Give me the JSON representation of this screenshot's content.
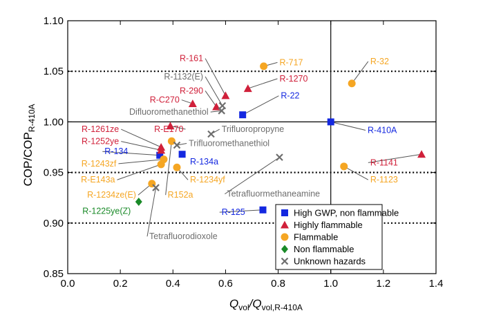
{
  "chart_data": {
    "type": "scatter",
    "xlabel": {
      "main": "Q",
      "sub1": "vol",
      "mid": "/Q",
      "sub2": "vol,R-410A"
    },
    "ylabel": {
      "main": "COP/COP",
      "sub": "R-410A"
    },
    "xlim": [
      0.0,
      1.4
    ],
    "ylim": [
      0.85,
      1.1
    ],
    "xticks": [
      0.0,
      0.2,
      0.4,
      0.6,
      0.8,
      1.0,
      1.2,
      1.4
    ],
    "yticks": [
      0.85,
      0.9,
      0.95,
      1.0,
      1.05,
      1.1
    ],
    "xtick_labels": [
      "0.0",
      "0.2",
      "0.4",
      "0.6",
      "0.8",
      "1.0",
      "1.2",
      "1.4"
    ],
    "ytick_labels": [
      "0.85",
      "0.90",
      "0.95",
      "1.00",
      "1.05",
      "1.10"
    ],
    "reference_lines": {
      "y_dotted": [
        0.9,
        0.95,
        1.05
      ],
      "y_solid": [
        1.0
      ],
      "x_solid": [
        1.0
      ]
    },
    "legend_position": "bottom-right",
    "categories": [
      {
        "key": "hgwp",
        "name": "High GWP, non flammable",
        "marker": "square",
        "color": "#1428e0"
      },
      {
        "key": "high",
        "name": "Highly flammable",
        "marker": "triangle",
        "color": "#d0203a"
      },
      {
        "key": "flam",
        "name": "Flammable",
        "marker": "circle",
        "color": "#f5a623"
      },
      {
        "key": "non",
        "name": "Non flammable",
        "marker": "diamond",
        "color": "#1a8a28"
      },
      {
        "key": "unk",
        "name": "Unknown hazards",
        "marker": "x",
        "color": "#6e6e6e"
      }
    ],
    "points": [
      {
        "label": "R-410A",
        "cat": "hgwp",
        "x": 1.0,
        "y": 1.0,
        "lx": 1.14,
        "ly": 0.989,
        "anchor": "start",
        "line": true
      },
      {
        "label": "R-22",
        "cat": "hgwp",
        "x": 0.665,
        "y": 1.007,
        "lx": 0.81,
        "ly": 1.023,
        "anchor": "start",
        "line": true
      },
      {
        "label": "R-134a",
        "cat": "hgwp",
        "x": 0.435,
        "y": 0.968,
        "lx": 0.465,
        "ly": 0.958,
        "anchor": "start",
        "line": false
      },
      {
        "label": "R-134",
        "cat": "hgwp",
        "x": 0.35,
        "y": 0.967,
        "lx": 0.14,
        "ly": 0.968,
        "anchor": "start",
        "line": true
      },
      {
        "label": "R-125",
        "cat": "hgwp",
        "x": 0.742,
        "y": 0.913,
        "lx": 0.585,
        "ly": 0.908,
        "anchor": "start",
        "line": true
      },
      {
        "label": "R-161",
        "cat": "high",
        "x": 0.6,
        "y": 1.026,
        "lx": 0.515,
        "ly": 1.06,
        "anchor": "end",
        "line": true
      },
      {
        "label": "R-290",
        "cat": "high",
        "x": 0.565,
        "y": 1.015,
        "lx": 0.515,
        "ly": 1.028,
        "anchor": "end",
        "line": true
      },
      {
        "label": "R-C270",
        "cat": "high",
        "x": 0.475,
        "y": 1.018,
        "lx": 0.425,
        "ly": 1.019,
        "anchor": "end",
        "line": true
      },
      {
        "label": "R-1270",
        "cat": "high",
        "x": 0.685,
        "y": 1.033,
        "lx": 0.805,
        "ly": 1.04,
        "anchor": "start",
        "line": true
      },
      {
        "label": "R-E170",
        "cat": "high",
        "x": 0.39,
        "y": 0.996,
        "lx": 0.44,
        "ly": 0.99,
        "anchor": "end",
        "line": true
      },
      {
        "label": "R-1261ze",
        "cat": "high",
        "x": 0.355,
        "y": 0.975,
        "lx": 0.195,
        "ly": 0.99,
        "anchor": "end",
        "line": true
      },
      {
        "label": "R-1252ye",
        "cat": "high",
        "x": 0.355,
        "y": 0.972,
        "lx": 0.195,
        "ly": 0.978,
        "anchor": "end",
        "line": true
      },
      {
        "label": "R-1141",
        "cat": "high",
        "x": 1.345,
        "y": 0.968,
        "lx": 1.15,
        "ly": 0.957,
        "anchor": "start",
        "line": true
      },
      {
        "label": "R-717",
        "cat": "flam",
        "x": 0.745,
        "y": 1.055,
        "lx": 0.805,
        "ly": 1.056,
        "anchor": "start",
        "line": true
      },
      {
        "label": "R-32",
        "cat": "flam",
        "x": 1.08,
        "y": 1.038,
        "lx": 1.15,
        "ly": 1.057,
        "anchor": "start",
        "line": true
      },
      {
        "label": "R-1123",
        "cat": "flam",
        "x": 1.05,
        "y": 0.956,
        "lx": 1.15,
        "ly": 0.94,
        "anchor": "start",
        "line": true
      },
      {
        "label": "R-1234yf",
        "cat": "flam",
        "x": 0.415,
        "y": 0.955,
        "lx": 0.465,
        "ly": 0.94,
        "anchor": "start",
        "line": true
      },
      {
        "label": "R152a",
        "cat": "flam",
        "x": 0.395,
        "y": 0.981,
        "lx": 0.38,
        "ly": 0.925,
        "anchor": "start",
        "line": true
      },
      {
        "label": "R-1243zf",
        "cat": "flam",
        "x": 0.365,
        "y": 0.963,
        "lx": 0.185,
        "ly": 0.956,
        "anchor": "end",
        "line": true
      },
      {
        "label": "R-E143a",
        "cat": "flam",
        "x": 0.355,
        "y": 0.958,
        "lx": 0.18,
        "ly": 0.94,
        "anchor": "end",
        "line": true
      },
      {
        "label": "R-1234ze(E)",
        "cat": "flam",
        "x": 0.32,
        "y": 0.939,
        "lx": 0.26,
        "ly": 0.925,
        "anchor": "end",
        "line": true
      },
      {
        "label": "R-1225ye(Z)",
        "cat": "non",
        "x": 0.27,
        "y": 0.921,
        "lx": 0.24,
        "ly": 0.909,
        "anchor": "end",
        "line": false
      },
      {
        "label": "R-1132(E)",
        "cat": "unk",
        "x": 0.588,
        "y": 1.016,
        "lx": 0.515,
        "ly": 1.042,
        "anchor": "end",
        "line": true
      },
      {
        "label": "Difluoromethanethiol",
        "cat": "unk",
        "x": 0.585,
        "y": 1.011,
        "lx": 0.535,
        "ly": 1.007,
        "anchor": "end",
        "line": true
      },
      {
        "label": "Trifluoropropyne",
        "cat": "unk",
        "x": 0.545,
        "y": 0.988,
        "lx": 0.585,
        "ly": 0.99,
        "anchor": "start",
        "line": true
      },
      {
        "label": "Trifluoromethanethiol",
        "cat": "unk",
        "x": 0.415,
        "y": 0.977,
        "lx": 0.46,
        "ly": 0.976,
        "anchor": "start",
        "line": true
      },
      {
        "label": "Tetrafluormethaneamine",
        "cat": "unk",
        "x": 0.805,
        "y": 0.965,
        "lx": 0.605,
        "ly": 0.926,
        "anchor": "start",
        "line": true
      },
      {
        "label": "Tetrafluorodioxole",
        "cat": "unk",
        "x": 0.335,
        "y": 0.935,
        "lx": 0.31,
        "ly": 0.884,
        "anchor": "start",
        "line": true
      }
    ]
  }
}
